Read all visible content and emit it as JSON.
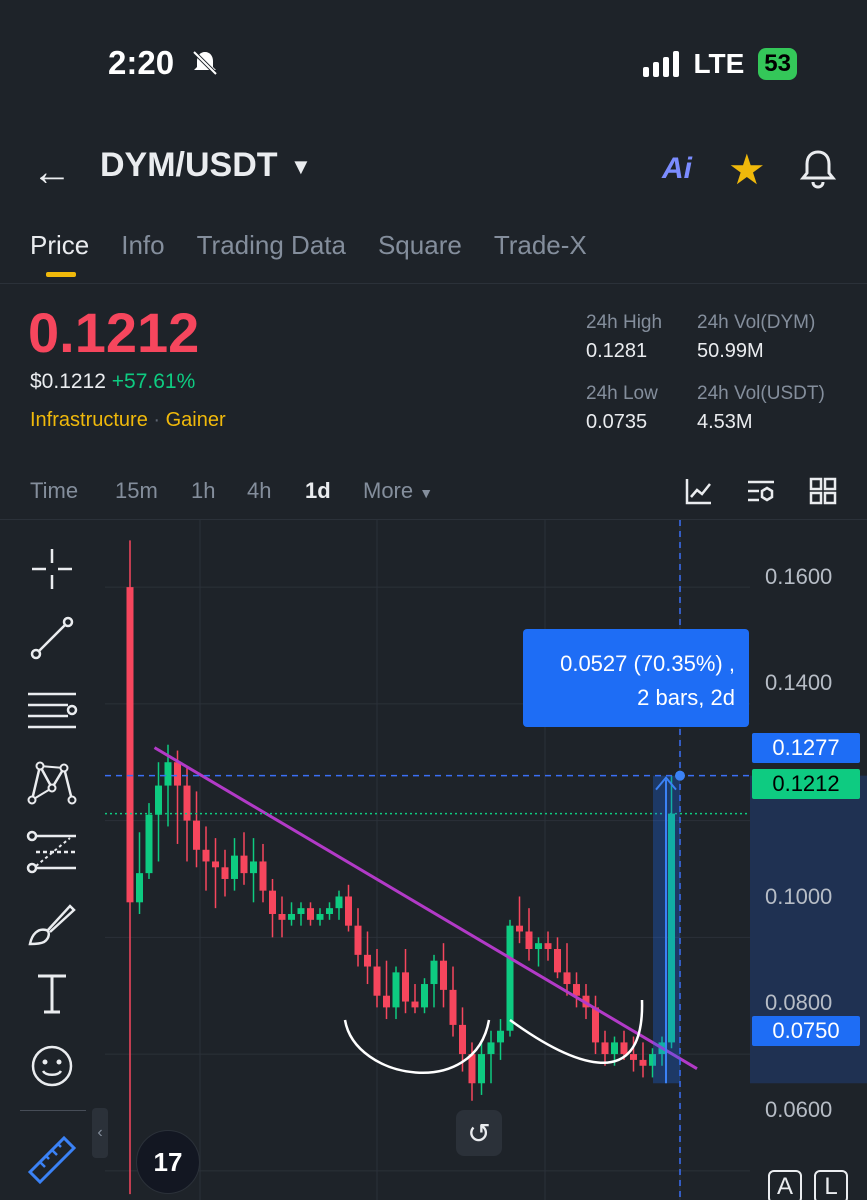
{
  "status": {
    "time": "2:20",
    "network": "LTE",
    "battery": "53"
  },
  "header": {
    "pair": "DYM/USDT"
  },
  "tabs": [
    {
      "label": "Price",
      "active": true
    },
    {
      "label": "Info",
      "active": false
    },
    {
      "label": "Trading Data",
      "active": false
    },
    {
      "label": "Square",
      "active": false
    },
    {
      "label": "Trade-X",
      "active": false
    }
  ],
  "price": {
    "last": "0.1212",
    "fiat": "$0.1212",
    "change": "+57.61%",
    "tag_category": "Infrastructure",
    "tag_gainer": "Gainer"
  },
  "stats": {
    "high_label": "24h High",
    "high": "0.1281",
    "low_label": "24h Low",
    "low": "0.0735",
    "vol_base_label": "24h Vol(DYM)",
    "vol_base": "50.99M",
    "vol_quote_label": "24h Vol(USDT)",
    "vol_quote": "4.53M"
  },
  "intervals": {
    "time": "Time",
    "m15": "15m",
    "h1": "1h",
    "h4": "4h",
    "d1": "1d",
    "more": "More",
    "active": "1d"
  },
  "chart_data": {
    "type": "candlestick",
    "y_ticks": [
      "0.1600",
      "0.1400",
      "0.1000",
      "0.0800",
      "0.0600"
    ],
    "ylim": [
      0.055,
      0.1715
    ],
    "candles": [
      [
        0.16,
        0.168,
        0.056,
        0.106
      ],
      [
        0.106,
        0.118,
        0.104,
        0.111
      ],
      [
        0.111,
        0.123,
        0.11,
        0.121
      ],
      [
        0.121,
        0.13,
        0.113,
        0.126
      ],
      [
        0.126,
        0.133,
        0.119,
        0.13
      ],
      [
        0.13,
        0.132,
        0.116,
        0.126
      ],
      [
        0.126,
        0.129,
        0.113,
        0.12
      ],
      [
        0.12,
        0.125,
        0.112,
        0.115
      ],
      [
        0.115,
        0.119,
        0.108,
        0.113
      ],
      [
        0.113,
        0.117,
        0.105,
        0.112
      ],
      [
        0.112,
        0.115,
        0.107,
        0.11
      ],
      [
        0.11,
        0.117,
        0.108,
        0.114
      ],
      [
        0.114,
        0.118,
        0.109,
        0.111
      ],
      [
        0.111,
        0.117,
        0.106,
        0.113
      ],
      [
        0.113,
        0.116,
        0.106,
        0.108
      ],
      [
        0.108,
        0.11,
        0.1,
        0.104
      ],
      [
        0.104,
        0.107,
        0.1,
        0.103
      ],
      [
        0.103,
        0.106,
        0.102,
        0.104
      ],
      [
        0.104,
        0.106,
        0.102,
        0.105
      ],
      [
        0.105,
        0.106,
        0.102,
        0.103
      ],
      [
        0.103,
        0.105,
        0.102,
        0.104
      ],
      [
        0.104,
        0.106,
        0.103,
        0.105
      ],
      [
        0.105,
        0.108,
        0.103,
        0.107
      ],
      [
        0.107,
        0.109,
        0.101,
        0.102
      ],
      [
        0.102,
        0.105,
        0.095,
        0.097
      ],
      [
        0.097,
        0.101,
        0.092,
        0.095
      ],
      [
        0.095,
        0.098,
        0.088,
        0.09
      ],
      [
        0.09,
        0.096,
        0.086,
        0.088
      ],
      [
        0.088,
        0.095,
        0.086,
        0.094
      ],
      [
        0.094,
        0.098,
        0.087,
        0.089
      ],
      [
        0.089,
        0.092,
        0.087,
        0.088
      ],
      [
        0.088,
        0.093,
        0.087,
        0.092
      ],
      [
        0.092,
        0.097,
        0.088,
        0.096
      ],
      [
        0.096,
        0.099,
        0.088,
        0.091
      ],
      [
        0.091,
        0.095,
        0.083,
        0.085
      ],
      [
        0.085,
        0.088,
        0.077,
        0.08
      ],
      [
        0.08,
        0.082,
        0.072,
        0.075
      ],
      [
        0.075,
        0.082,
        0.073,
        0.08
      ],
      [
        0.08,
        0.084,
        0.075,
        0.082
      ],
      [
        0.082,
        0.086,
        0.079,
        0.084
      ],
      [
        0.084,
        0.103,
        0.083,
        0.102
      ],
      [
        0.102,
        0.107,
        0.099,
        0.101
      ],
      [
        0.101,
        0.105,
        0.096,
        0.098
      ],
      [
        0.098,
        0.1,
        0.095,
        0.099
      ],
      [
        0.099,
        0.101,
        0.096,
        0.098
      ],
      [
        0.098,
        0.1,
        0.093,
        0.094
      ],
      [
        0.094,
        0.099,
        0.09,
        0.092
      ],
      [
        0.092,
        0.094,
        0.088,
        0.09
      ],
      [
        0.09,
        0.092,
        0.086,
        0.088
      ],
      [
        0.088,
        0.09,
        0.08,
        0.082
      ],
      [
        0.082,
        0.084,
        0.078,
        0.08
      ],
      [
        0.08,
        0.083,
        0.078,
        0.082
      ],
      [
        0.082,
        0.084,
        0.079,
        0.08
      ],
      [
        0.08,
        0.083,
        0.077,
        0.079
      ],
      [
        0.079,
        0.082,
        0.076,
        0.078
      ],
      [
        0.078,
        0.081,
        0.076,
        0.08
      ],
      [
        0.08,
        0.083,
        0.078,
        0.082
      ],
      [
        0.082,
        0.1277,
        0.081,
        0.1212
      ]
    ],
    "trendline": {
      "from": [
        3,
        0.1325
      ],
      "to": [
        60,
        0.0775
      ],
      "color": "#b23ac7"
    },
    "measure": {
      "text_1": "0.0527 (70.35%) ,",
      "text_2": "2 bars, 2d",
      "from": 0.075,
      "to": 0.1277
    },
    "price_tags": {
      "high": "0.1277",
      "last": "0.1212",
      "low": "0.0750"
    }
  },
  "toolbar_icons": [
    "crosshair-icon",
    "trend-line-icon",
    "parallel-lines-icon",
    "pattern-icon",
    "fib-icon",
    "brush-icon",
    "text-icon",
    "emoji-icon",
    "ruler-icon"
  ],
  "bottom": {
    "reset_glyph": "↺",
    "tv_logo": "17",
    "btn_a": "A",
    "btn_l": "L"
  }
}
